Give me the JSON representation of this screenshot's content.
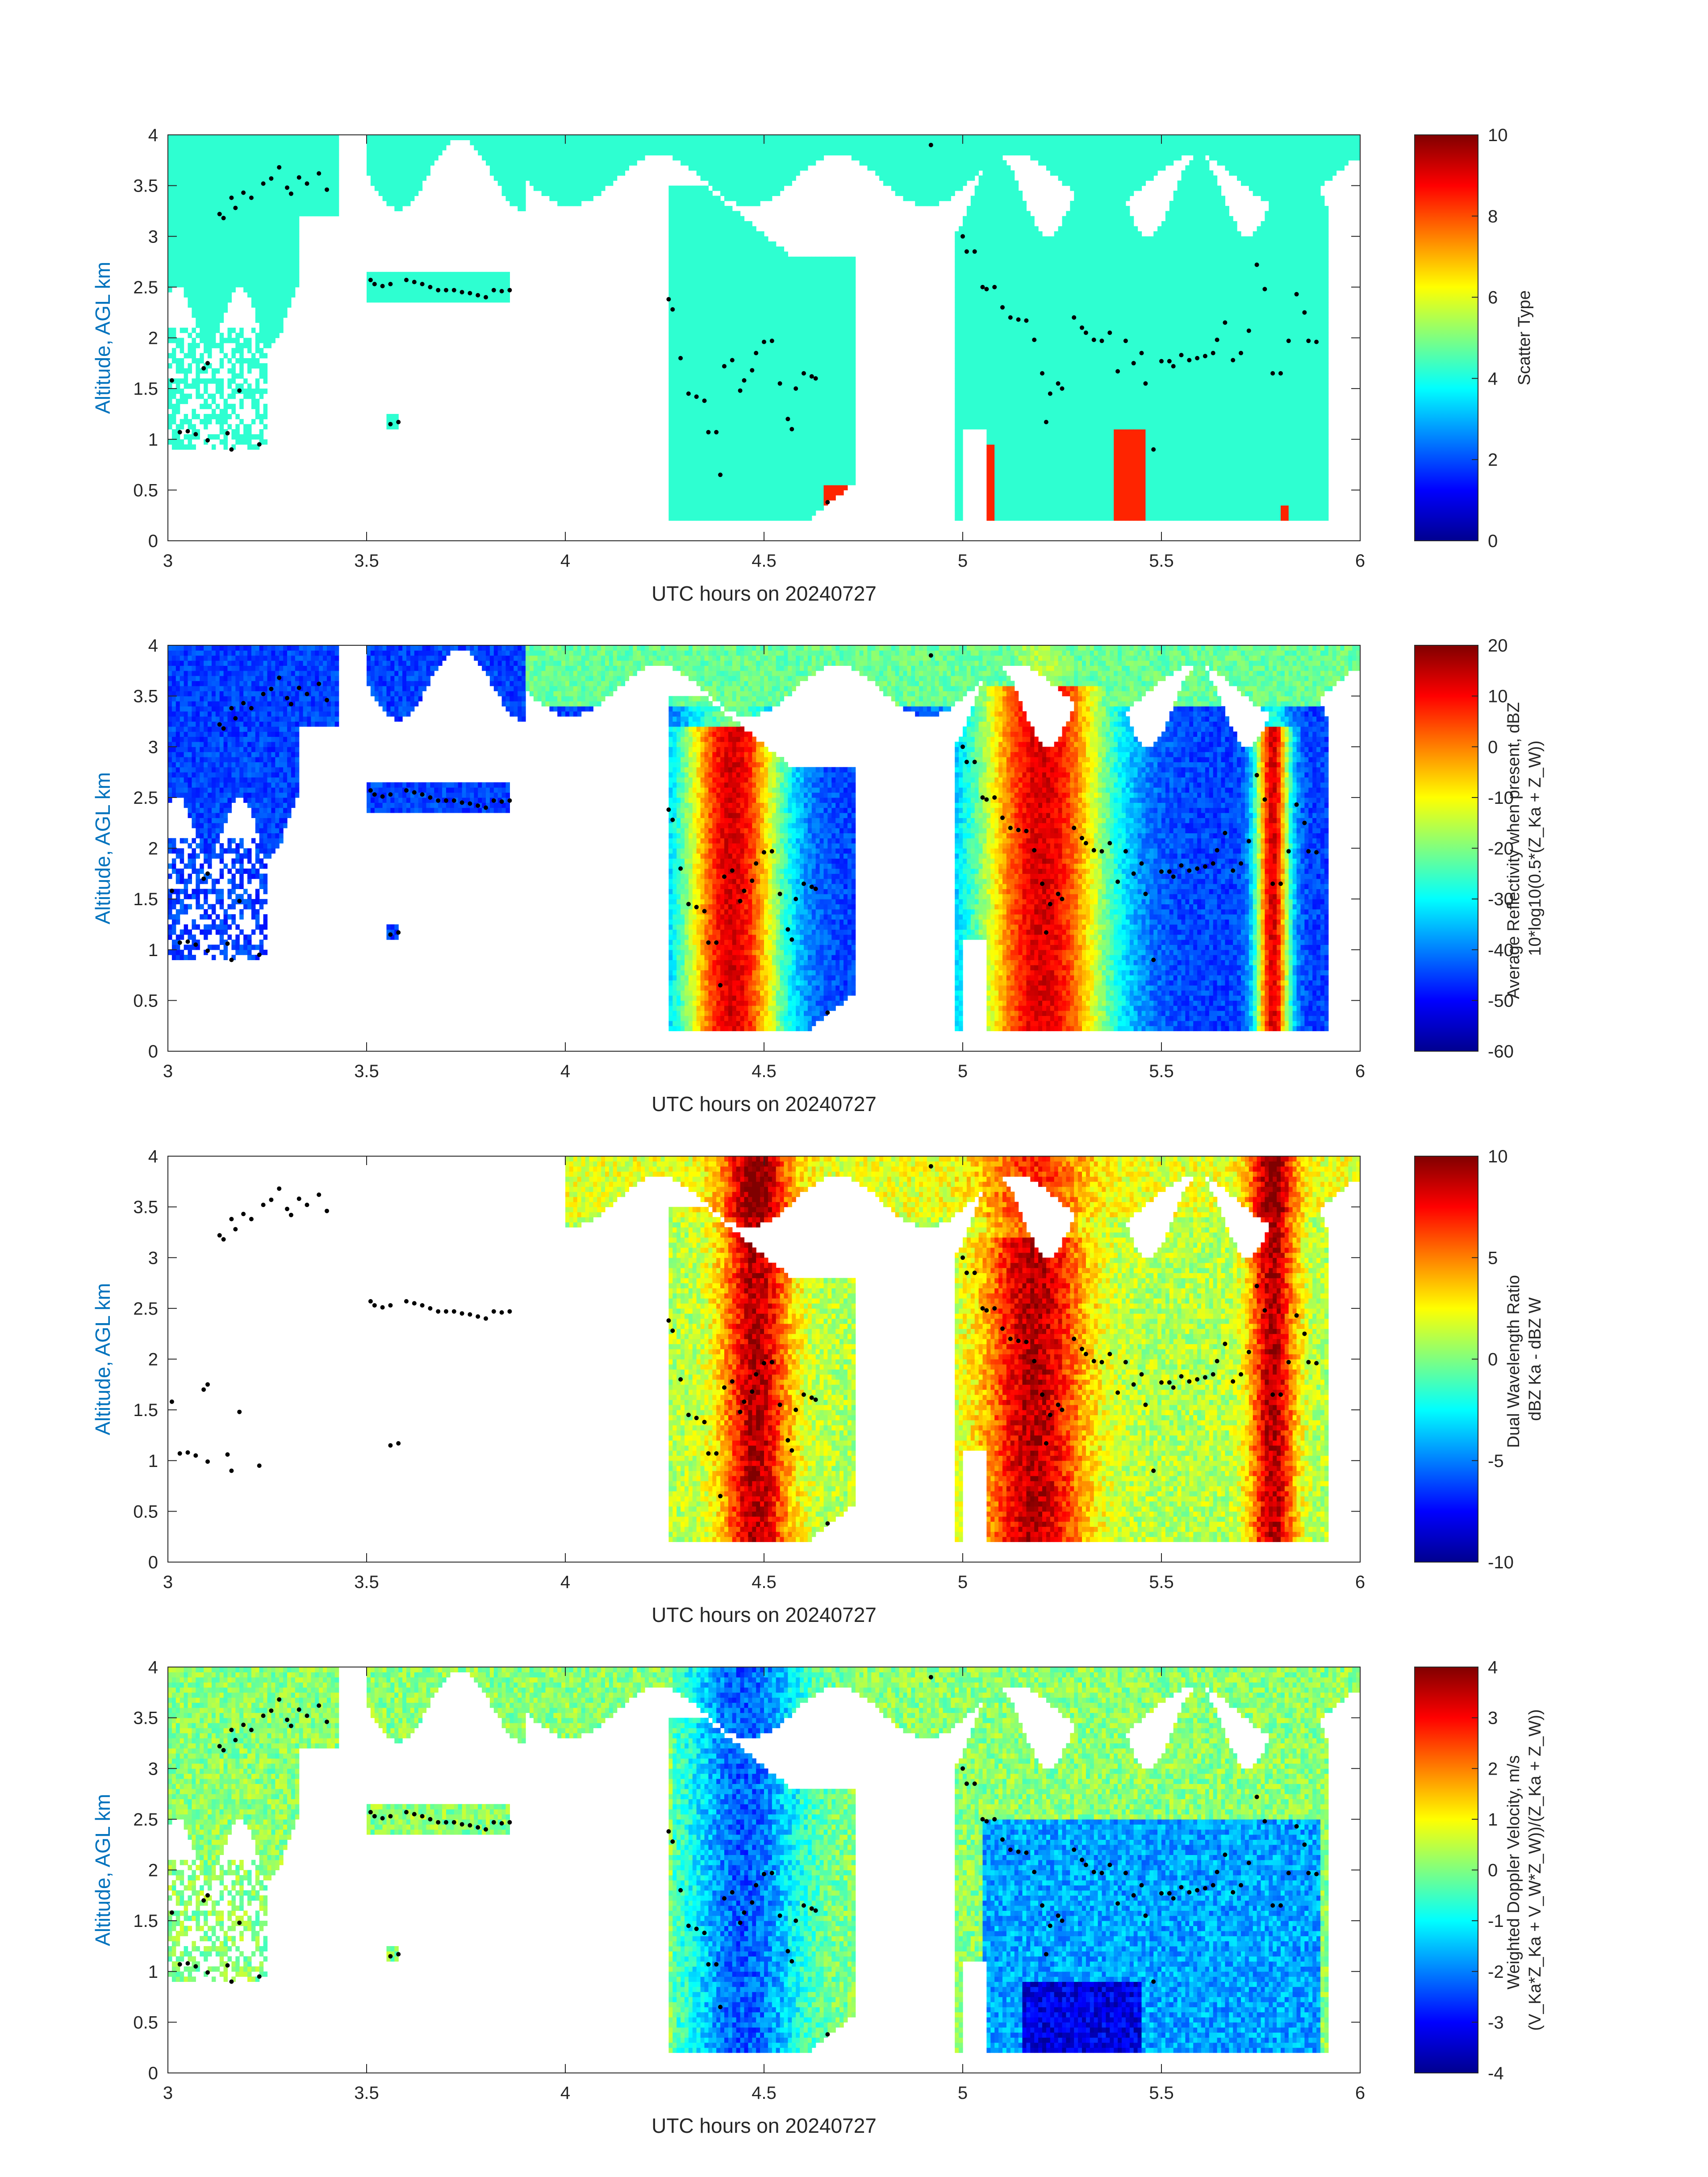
{
  "chart_data": [
    {
      "type": "heatmap",
      "title": "",
      "xlabel": "UTC hours on 20240727",
      "ylabel": "Altitude, AGL km",
      "xlim": [
        3,
        6
      ],
      "ylim": [
        0,
        4
      ],
      "xticks": [
        "3",
        "3.5",
        "4",
        "4.5",
        "5",
        "5.5",
        "6"
      ],
      "yticks": [
        "0",
        "0.5",
        "1",
        "1.5",
        "2",
        "2.5",
        "3",
        "3.5",
        "4"
      ],
      "colorbar": {
        "label_lines": [
          "Scatter Type"
        ],
        "range": [
          0,
          10
        ],
        "ticks": [
          "0",
          "2",
          "4",
          "6",
          "8",
          "10"
        ],
        "colormap": "jet"
      },
      "scheme": "scatter"
    },
    {
      "type": "heatmap",
      "title": "",
      "xlabel": "UTC hours on 20240727",
      "ylabel": "Altitude, AGL km",
      "xlim": [
        3,
        6
      ],
      "ylim": [
        0,
        4
      ],
      "xticks": [
        "3",
        "3.5",
        "4",
        "4.5",
        "5",
        "5.5",
        "6"
      ],
      "yticks": [
        "0",
        "0.5",
        "1",
        "1.5",
        "2",
        "2.5",
        "3",
        "3.5",
        "4"
      ],
      "colorbar": {
        "label_lines": [
          "Average Reflectivity when present, dBZ",
          "10*log10(0.5*(Z_Ka + Z_W))"
        ],
        "range": [
          -60,
          20
        ],
        "ticks": [
          "-60",
          "-50",
          "-40",
          "-30",
          "-20",
          "-10",
          "0",
          "10",
          "20"
        ],
        "colormap": "jet"
      },
      "scheme": "reflectivity"
    },
    {
      "type": "heatmap",
      "title": "",
      "xlabel": "UTC hours on 20240727",
      "ylabel": "Altitude, AGL km",
      "xlim": [
        3,
        6
      ],
      "ylim": [
        0,
        4
      ],
      "xticks": [
        "3",
        "3.5",
        "4",
        "4.5",
        "5",
        "5.5",
        "6"
      ],
      "yticks": [
        "0",
        "0.5",
        "1",
        "1.5",
        "2",
        "2.5",
        "3",
        "3.5",
        "4"
      ],
      "colorbar": {
        "label_lines": [
          "Dual Wavelength Ratio",
          "dBZ Ka - dBZ W"
        ],
        "range": [
          -10,
          10
        ],
        "ticks": [
          "-10",
          "-5",
          "0",
          "5",
          "10"
        ],
        "colormap": "jet"
      },
      "scheme": "dwr"
    },
    {
      "type": "heatmap",
      "title": "",
      "xlabel": "UTC hours on 20240727",
      "ylabel": "Altitude, AGL km",
      "xlim": [
        3,
        6
      ],
      "ylim": [
        0,
        4
      ],
      "xticks": [
        "3",
        "3.5",
        "4",
        "4.5",
        "5",
        "5.5",
        "6"
      ],
      "yticks": [
        "0",
        "0.5",
        "1",
        "1.5",
        "2",
        "2.5",
        "3",
        "3.5",
        "4"
      ],
      "colorbar": {
        "label_lines": [
          "Weighted Doppler Velocity, m/s",
          "(V_Ka*Z_Ka + V_W*Z_W))/(Z_Ka + Z_W))"
        ],
        "range": [
          -4,
          4
        ],
        "ticks": [
          "-4",
          "-3",
          "-2",
          "-1",
          "0",
          "1",
          "2",
          "3",
          "4"
        ],
        "colormap": "jet"
      },
      "scheme": "velocity"
    }
  ],
  "cloud_base_points": [
    [
      3.01,
      1.58
    ],
    [
      3.03,
      1.07
    ],
    [
      3.05,
      1.08
    ],
    [
      3.07,
      1.05
    ],
    [
      3.09,
      1.7
    ],
    [
      3.1,
      1.75
    ],
    [
      3.1,
      0.99
    ],
    [
      3.13,
      3.22
    ],
    [
      3.14,
      3.18
    ],
    [
      3.15,
      1.06
    ],
    [
      3.16,
      0.9
    ],
    [
      3.16,
      3.38
    ],
    [
      3.17,
      3.28
    ],
    [
      3.18,
      1.48
    ],
    [
      3.19,
      3.43
    ],
    [
      3.21,
      3.38
    ],
    [
      3.23,
      0.95
    ],
    [
      3.24,
      3.52
    ],
    [
      3.26,
      3.57
    ],
    [
      3.28,
      3.68
    ],
    [
      3.3,
      3.48
    ],
    [
      3.31,
      3.42
    ],
    [
      3.33,
      3.58
    ],
    [
      3.35,
      3.52
    ],
    [
      3.38,
      3.62
    ],
    [
      3.4,
      3.46
    ],
    [
      3.51,
      2.57
    ],
    [
      3.52,
      2.53
    ],
    [
      3.54,
      2.51
    ],
    [
      3.56,
      2.53
    ],
    [
      3.56,
      1.15
    ],
    [
      3.58,
      1.17
    ],
    [
      3.6,
      2.57
    ],
    [
      3.62,
      2.55
    ],
    [
      3.64,
      2.53
    ],
    [
      3.66,
      2.5
    ],
    [
      3.68,
      2.47
    ],
    [
      3.7,
      2.47
    ],
    [
      3.72,
      2.47
    ],
    [
      3.74,
      2.45
    ],
    [
      3.76,
      2.44
    ],
    [
      3.78,
      2.42
    ],
    [
      3.8,
      2.4
    ],
    [
      3.82,
      2.47
    ],
    [
      3.84,
      2.46
    ],
    [
      3.86,
      2.47
    ],
    [
      4.26,
      2.38
    ],
    [
      4.27,
      2.28
    ],
    [
      4.29,
      1.8
    ],
    [
      4.31,
      1.45
    ],
    [
      4.33,
      1.42
    ],
    [
      4.35,
      1.38
    ],
    [
      4.36,
      1.07
    ],
    [
      4.38,
      1.07
    ],
    [
      4.39,
      0.65
    ],
    [
      4.4,
      1.72
    ],
    [
      4.42,
      1.78
    ],
    [
      4.44,
      1.48
    ],
    [
      4.45,
      1.58
    ],
    [
      4.47,
      1.68
    ],
    [
      4.48,
      1.85
    ],
    [
      4.5,
      1.96
    ],
    [
      4.52,
      1.97
    ],
    [
      4.54,
      1.55
    ],
    [
      4.56,
      1.2
    ],
    [
      4.57,
      1.1
    ],
    [
      4.58,
      1.5
    ],
    [
      4.6,
      1.65
    ],
    [
      4.62,
      1.62
    ],
    [
      4.63,
      1.6
    ],
    [
      4.66,
      0.38
    ],
    [
      4.92,
      3.9
    ],
    [
      5.0,
      3.0
    ],
    [
      5.01,
      2.85
    ],
    [
      5.03,
      2.85
    ],
    [
      5.05,
      2.5
    ],
    [
      5.06,
      2.48
    ],
    [
      5.08,
      2.5
    ],
    [
      5.1,
      2.3
    ],
    [
      5.12,
      2.2
    ],
    [
      5.14,
      2.18
    ],
    [
      5.16,
      2.17
    ],
    [
      5.18,
      1.98
    ],
    [
      5.2,
      1.65
    ],
    [
      5.21,
      1.17
    ],
    [
      5.22,
      1.45
    ],
    [
      5.24,
      1.55
    ],
    [
      5.25,
      1.5
    ],
    [
      5.28,
      2.2
    ],
    [
      5.3,
      2.1
    ],
    [
      5.31,
      2.05
    ],
    [
      5.33,
      1.98
    ],
    [
      5.35,
      1.97
    ],
    [
      5.37,
      2.05
    ],
    [
      5.39,
      1.67
    ],
    [
      5.41,
      1.97
    ],
    [
      5.43,
      1.75
    ],
    [
      5.45,
      1.85
    ],
    [
      5.46,
      1.55
    ],
    [
      5.48,
      0.9
    ],
    [
      5.5,
      1.77
    ],
    [
      5.52,
      1.77
    ],
    [
      5.53,
      1.72
    ],
    [
      5.55,
      1.83
    ],
    [
      5.57,
      1.78
    ],
    [
      5.59,
      1.8
    ],
    [
      5.61,
      1.82
    ],
    [
      5.63,
      1.85
    ],
    [
      5.64,
      1.98
    ],
    [
      5.66,
      2.15
    ],
    [
      5.68,
      1.78
    ],
    [
      5.7,
      1.85
    ],
    [
      5.72,
      2.07
    ],
    [
      5.74,
      2.72
    ],
    [
      5.76,
      2.48
    ],
    [
      5.78,
      1.65
    ],
    [
      5.8,
      1.65
    ],
    [
      5.82,
      1.97
    ],
    [
      5.84,
      2.43
    ],
    [
      5.86,
      2.25
    ],
    [
      5.87,
      1.97
    ],
    [
      5.89,
      1.96
    ]
  ]
}
